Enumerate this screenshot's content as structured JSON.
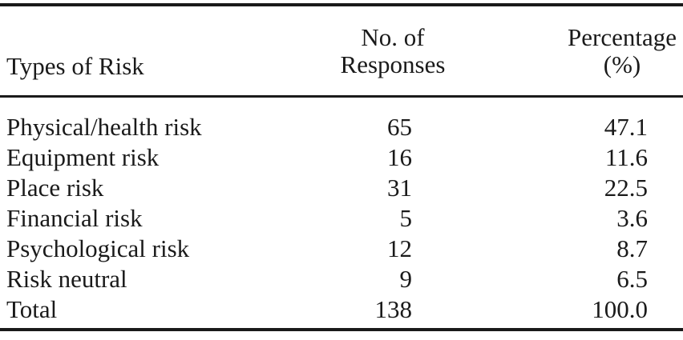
{
  "table": {
    "headers": {
      "type": "Types of Risk",
      "responses_line1": "No. of",
      "responses_line2": "Responses",
      "percentage_line1": "Percentage",
      "percentage_line2": "(%)"
    },
    "rows": [
      {
        "type": "Physical/health risk",
        "responses": "65",
        "percentage": "47.1"
      },
      {
        "type": "Equipment risk",
        "responses": "16",
        "percentage": "11.6"
      },
      {
        "type": "Place risk",
        "responses": "31",
        "percentage": "22.5"
      },
      {
        "type": "Financial risk",
        "responses": "5",
        "percentage": "3.6"
      },
      {
        "type": "Psychological risk",
        "responses": "12",
        "percentage": "8.7"
      },
      {
        "type": "Risk neutral",
        "responses": "9",
        "percentage": "6.5"
      },
      {
        "type": "Total",
        "responses": "138",
        "percentage": "100.0"
      }
    ]
  }
}
